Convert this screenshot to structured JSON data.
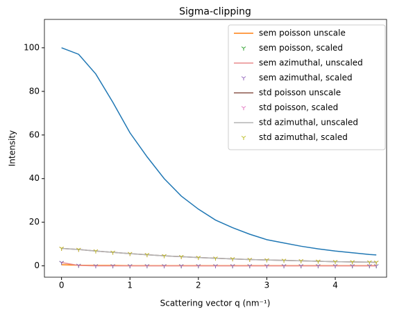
{
  "chart_data": {
    "type": "line",
    "title": "Sigma-clipping",
    "xlabel": "Scattering vector q (nm⁻¹)",
    "ylabel": "Intensity",
    "x": [
      0,
      0.25,
      0.5,
      0.75,
      1.0,
      1.25,
      1.5,
      1.75,
      2.0,
      2.25,
      2.5,
      2.75,
      3.0,
      3.25,
      3.5,
      3.75,
      4.0,
      4.25,
      4.5,
      4.6
    ],
    "xlim": [
      -0.25,
      4.75
    ],
    "xticks": [
      0,
      1,
      2,
      3,
      4
    ],
    "ylim": [
      -5.2,
      113
    ],
    "yticks": [
      0,
      20,
      40,
      60,
      80,
      100
    ],
    "legend": "upper right",
    "series": [
      {
        "color": "#1f77b4",
        "style": "line",
        "values": [
          100,
          97,
          88,
          75,
          61,
          50,
          40,
          32,
          26,
          21,
          17.5,
          14.5,
          12,
          10.5,
          9,
          7.8,
          6.8,
          6,
          5.2,
          5
        ]
      },
      {
        "name": "sem poisson unscale",
        "color": "#ff7f0e",
        "style": "line",
        "values": [
          0.5,
          0.3,
          0.2,
          0.2,
          0.1,
          0.1,
          0.1,
          0.1,
          0.1,
          0.1,
          0.1,
          0.1,
          0.1,
          0.1,
          0.1,
          0.1,
          0.1,
          0.1,
          0.1,
          0.1
        ]
      },
      {
        "name": "sem poisson, scaled",
        "color": "#2ca02c",
        "style": "marker",
        "values": [
          1.5,
          0.2,
          0,
          0,
          0,
          0,
          0,
          0,
          0,
          0,
          0,
          0,
          0,
          0,
          0,
          0,
          0,
          0,
          0,
          0
        ]
      },
      {
        "name": "sem azimuthal, unscaled",
        "color": "#e88a8b",
        "style": "line",
        "values": [
          1.5,
          0.2,
          0,
          0,
          0,
          0,
          0,
          0,
          0,
          0,
          0,
          0,
          0,
          0,
          0,
          0,
          0,
          0,
          0,
          0
        ]
      },
      {
        "name": "sem azimuthal, scaled",
        "color": "#9467bd",
        "style": "marker",
        "values": [
          1.5,
          0.2,
          0,
          0,
          0,
          0,
          0,
          0,
          0,
          0,
          0,
          0,
          0,
          0,
          0,
          0,
          0,
          0,
          0,
          0
        ]
      },
      {
        "name": "std poisson unscale",
        "color": "#8c564b",
        "style": "line",
        "values": [
          8,
          7.5,
          6.8,
          6.2,
          5.6,
          5.1,
          4.6,
          4.2,
          3.8,
          3.5,
          3.2,
          2.9,
          2.7,
          2.5,
          2.3,
          2.1,
          1.9,
          1.8,
          1.7,
          1.6
        ]
      },
      {
        "name": "std poisson, scaled",
        "color": "#e377c2",
        "style": "marker",
        "values": [
          8,
          7.5,
          6.8,
          6.2,
          5.6,
          5.1,
          4.6,
          4.2,
          3.8,
          3.5,
          3.2,
          2.9,
          2.7,
          2.5,
          2.3,
          2.1,
          1.9,
          1.8,
          1.7,
          1.6
        ]
      },
      {
        "name": "std azimuthal, unscaled",
        "color": "#b3b3b3",
        "style": "line",
        "values": [
          8,
          7.5,
          6.8,
          6.2,
          5.6,
          5.1,
          4.6,
          4.2,
          3.8,
          3.5,
          3.2,
          2.9,
          2.7,
          2.5,
          2.3,
          2.1,
          1.9,
          1.8,
          1.7,
          1.6
        ]
      },
      {
        "name": "std azimuthal, scaled",
        "color": "#bcbd22",
        "style": "marker",
        "values": [
          8,
          7.5,
          6.8,
          6.2,
          5.6,
          5.1,
          4.6,
          4.2,
          3.8,
          3.5,
          3.2,
          2.9,
          2.7,
          2.5,
          2.3,
          2.1,
          1.9,
          1.8,
          1.7,
          1.6
        ]
      }
    ]
  }
}
